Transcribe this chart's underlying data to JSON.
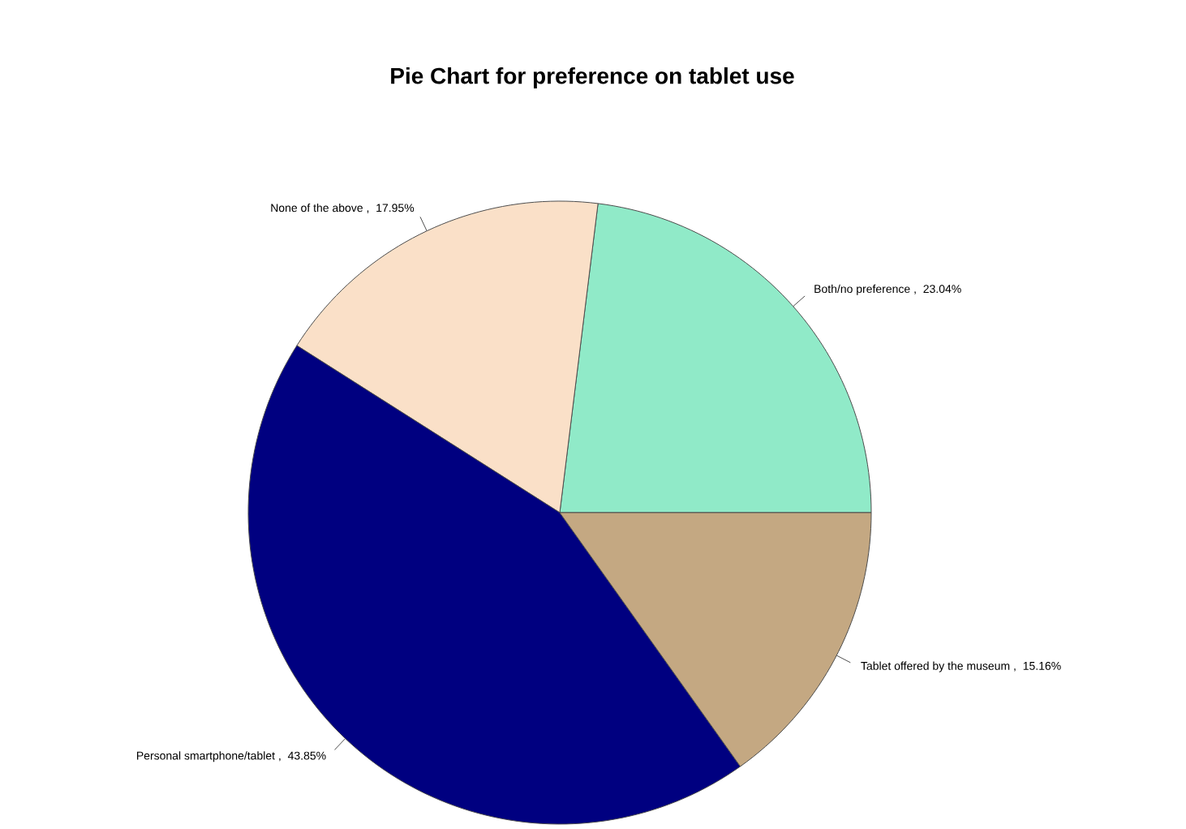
{
  "chart_data": {
    "type": "pie",
    "title": "Pie Chart for preference on tablet use",
    "categories": [
      "Both/no preference",
      "None of the above",
      "Personal smartphone/tablet",
      "Tablet offered by the museum"
    ],
    "values": [
      23.04,
      17.95,
      43.85,
      15.16
    ],
    "value_labels": [
      "23.04%",
      "17.95%",
      "43.85%",
      "15.16%"
    ],
    "annotations": [
      ",",
      ",",
      ",",
      ","
    ],
    "colors": [
      "#90eac8",
      "#fae0c8",
      "#000080",
      "#c4a882"
    ]
  }
}
